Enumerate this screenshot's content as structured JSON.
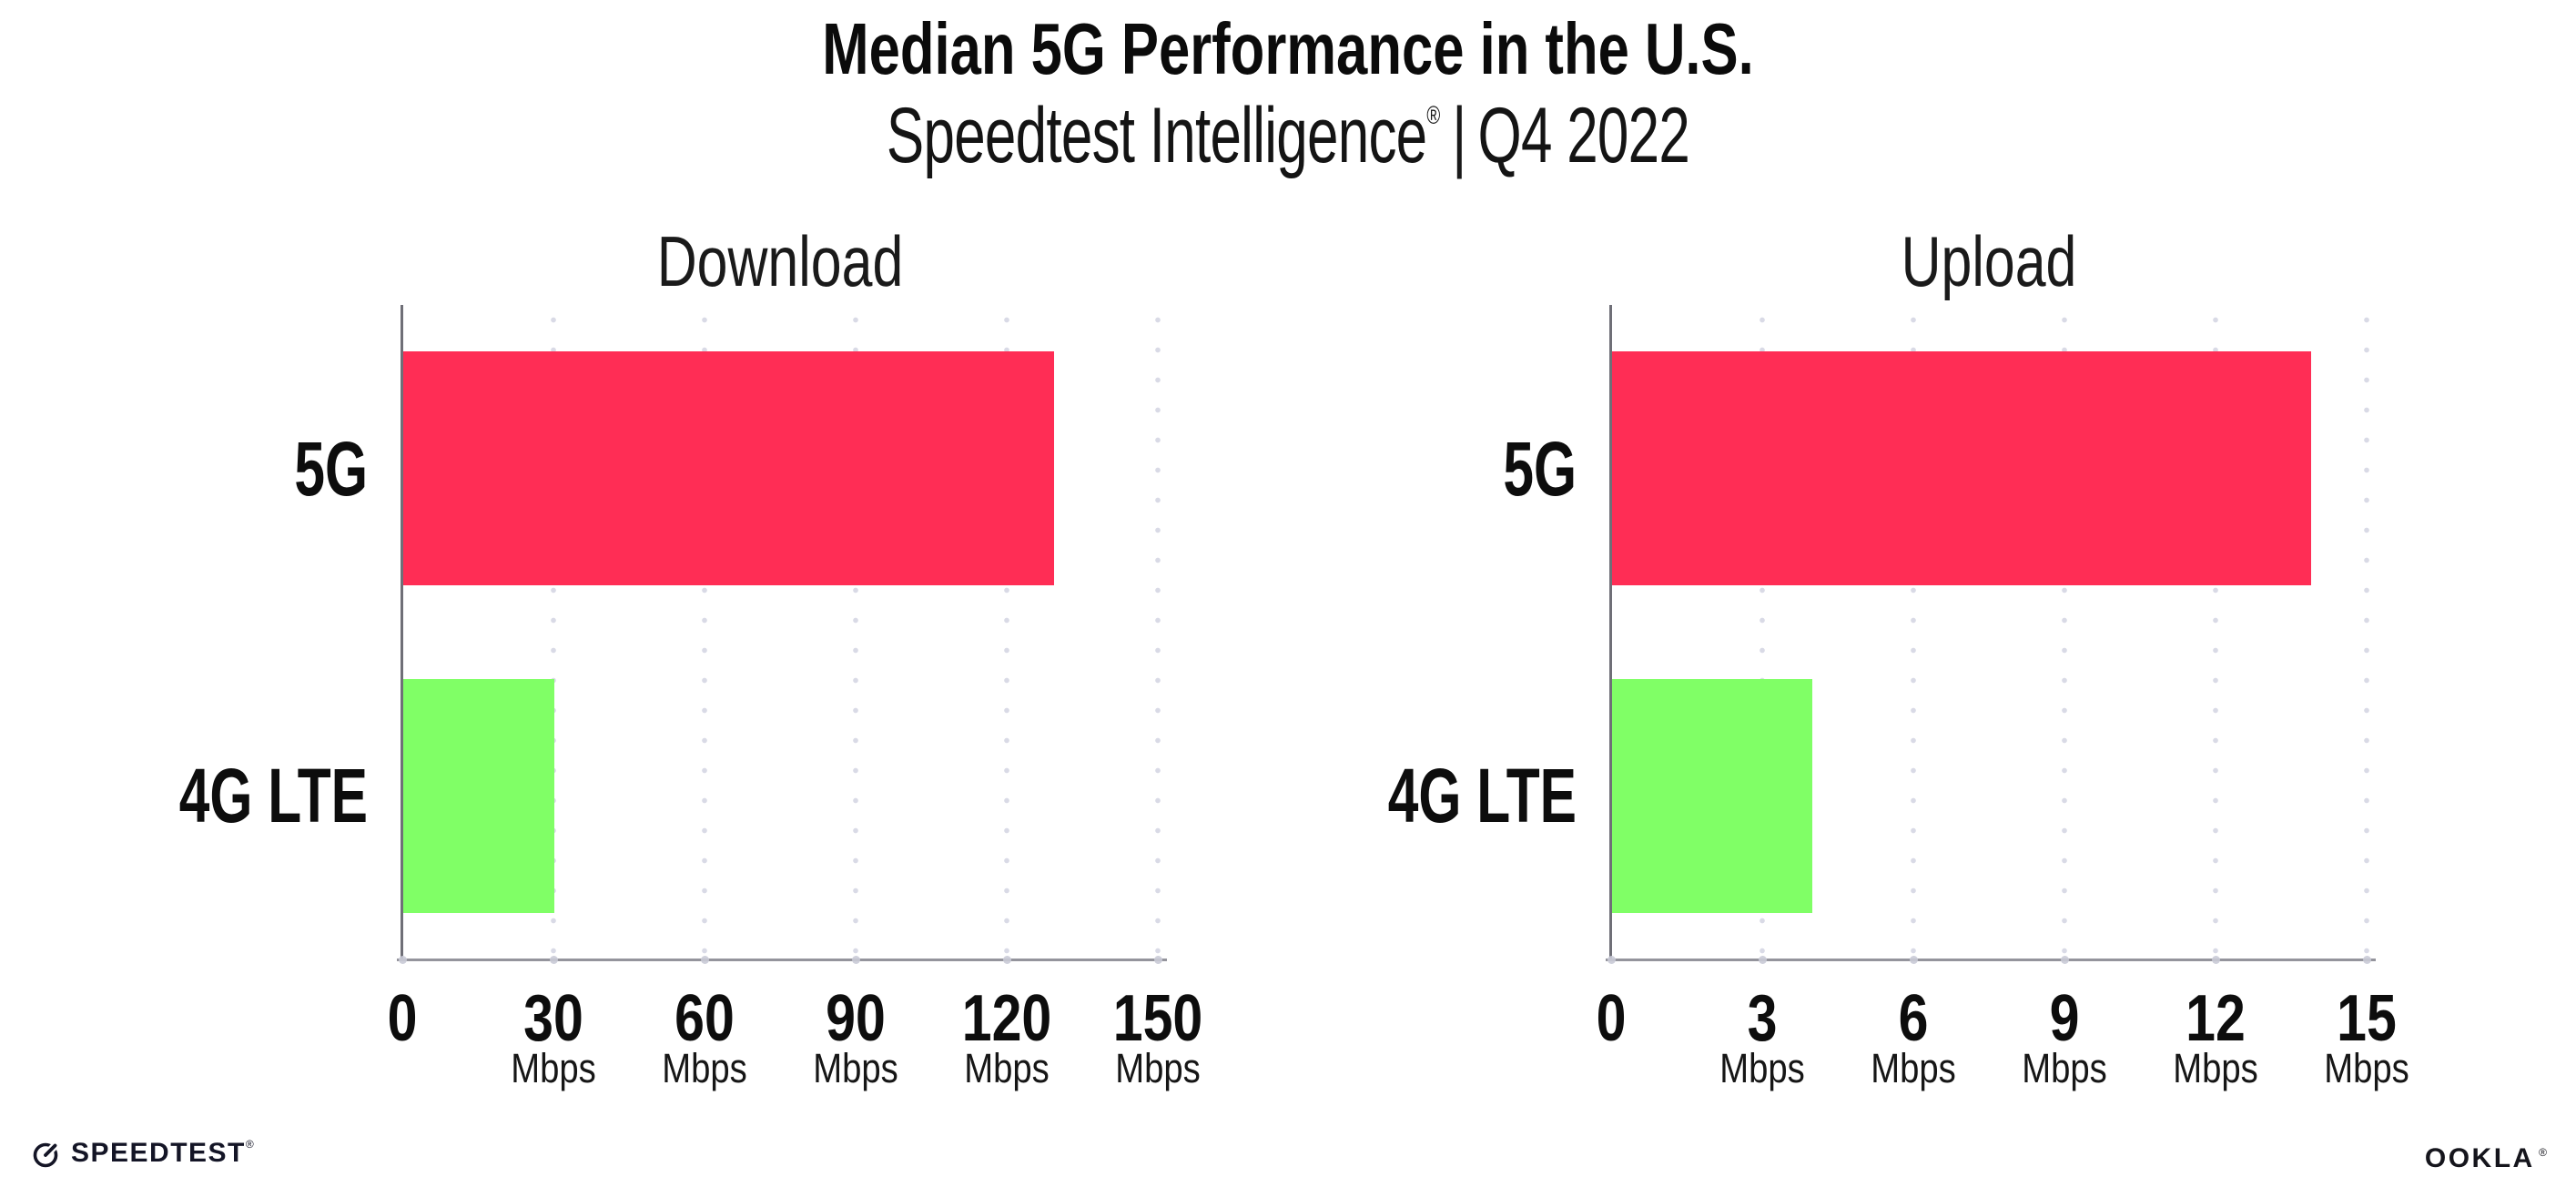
{
  "header": {
    "title": "Median 5G Performance in the U.S.",
    "subtitle": {
      "brand": "Speedtest Intelligence",
      "registered_mark": "®",
      "separator": "|",
      "period": "Q4 2022"
    }
  },
  "colors": {
    "bar_5g": "#FF2D55",
    "bar_4g_lte": "#80FF66",
    "gridline": "#D9DAE6",
    "axis_y": "#6F6F77",
    "axis_x": "#94949C",
    "tick_dot": "#C9CAD6",
    "text": "#111111"
  },
  "chart_data": [
    {
      "type": "bar",
      "orientation": "horizontal",
      "title": "Download",
      "categories": [
        "5G",
        "4G LTE"
      ],
      "values": [
        129.4,
        30.1
      ],
      "value_unit": "Mbps",
      "xlim": [
        0,
        150
      ],
      "xticks": [
        0,
        30,
        60,
        90,
        120,
        150
      ],
      "xtick_unit": "Mbps",
      "grid": "vertical-dotted",
      "legend": "none",
      "series_colors": [
        "#FF2D55",
        "#80FF66"
      ]
    },
    {
      "type": "bar",
      "orientation": "horizontal",
      "title": "Upload",
      "categories": [
        "5G",
        "4G LTE"
      ],
      "values": [
        13.9,
        4.0
      ],
      "value_unit": "Mbps",
      "xlim": [
        0,
        15
      ],
      "xticks": [
        0,
        3,
        6,
        9,
        12,
        15
      ],
      "xtick_unit": "Mbps",
      "grid": "vertical-dotted",
      "legend": "none",
      "series_colors": [
        "#FF2D55",
        "#80FF66"
      ]
    }
  ],
  "footer": {
    "speedtest_logo_text": "SPEEDTEST",
    "speedtest_registered_mark": "®",
    "ookla_logo_text": "OOKLA",
    "ookla_registered_mark": "®"
  }
}
